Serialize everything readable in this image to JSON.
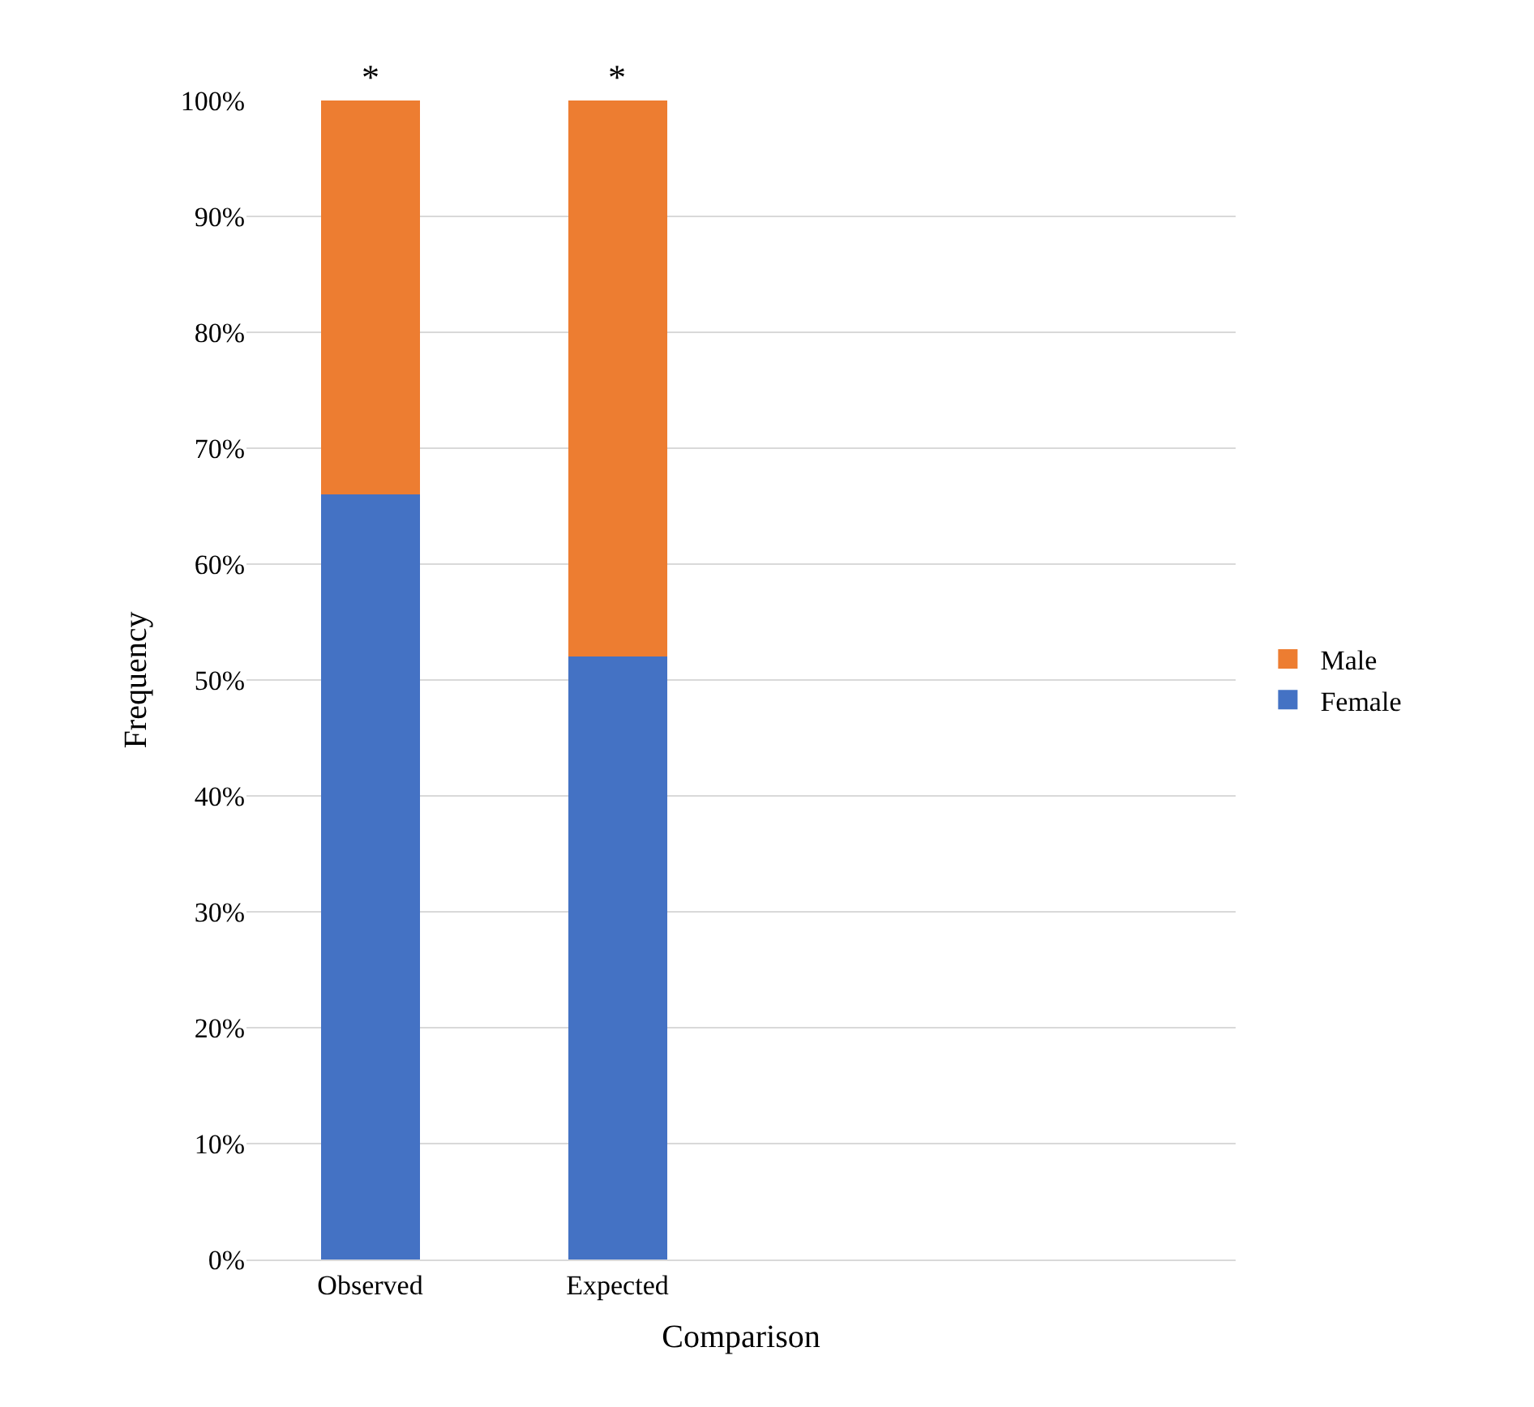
{
  "chart_data": {
    "type": "bar",
    "stacked": true,
    "xlabel": "Comparison",
    "ylabel": "Frequency",
    "categories": [
      "Observed",
      "Expected",
      null,
      null
    ],
    "series": [
      {
        "name": "Female",
        "color": "#4472c4",
        "values": [
          66,
          52,
          null,
          null
        ]
      },
      {
        "name": "Male",
        "color": "#ed7d31",
        "values": [
          34,
          48,
          null,
          null
        ]
      }
    ],
    "ylim": [
      0,
      100
    ],
    "yticks": [
      {
        "value": 0,
        "label": "0%"
      },
      {
        "value": 10,
        "label": "10%"
      },
      {
        "value": 20,
        "label": "20%"
      },
      {
        "value": 30,
        "label": "30%"
      },
      {
        "value": 40,
        "label": "40%"
      },
      {
        "value": 50,
        "label": "50%"
      },
      {
        "value": 60,
        "label": "60%"
      },
      {
        "value": 70,
        "label": "70%"
      },
      {
        "value": 80,
        "label": "80%"
      },
      {
        "value": 90,
        "label": "90%"
      },
      {
        "value": 100,
        "label": "100%"
      }
    ],
    "grid": "y",
    "legend": "right",
    "annotations": [
      {
        "text": "*",
        "x": "Observed",
        "y": 100
      },
      {
        "text": "*",
        "x": "Expected",
        "y": 100
      }
    ]
  }
}
